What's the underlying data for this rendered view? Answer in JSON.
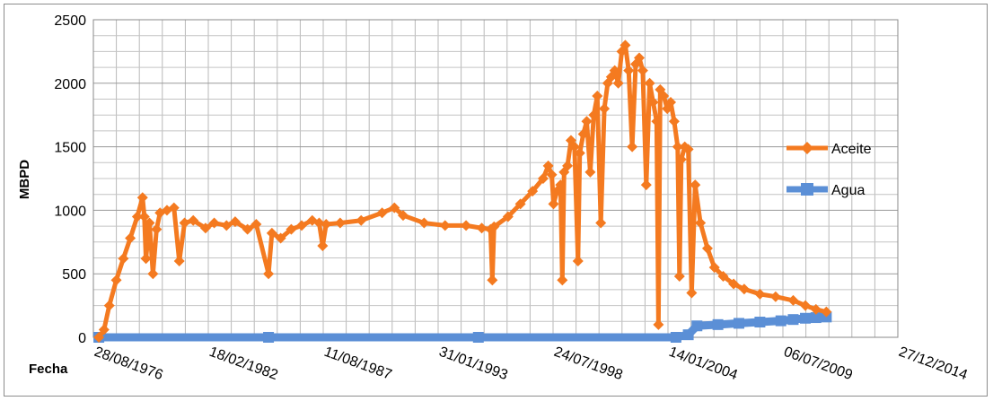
{
  "chart_data": {
    "type": "line",
    "xlabel": "Fecha",
    "ylabel": "MBPD",
    "x_tick_labels": [
      "28/08/1976",
      "18/02/1982",
      "11/08/1987",
      "31/01/1993",
      "24/07/1998",
      "14/01/2004",
      "06/07/2009",
      "27/12/2014"
    ],
    "ylim": [
      0,
      2500
    ],
    "y_ticks": [
      0,
      500,
      1000,
      1500,
      2000,
      2500
    ],
    "grid": true,
    "legend_position": "right",
    "series": [
      {
        "name": "Aceite",
        "color": "#f47a20",
        "marker": "diamond",
        "points": [
          [
            "1976-12-01",
            0
          ],
          [
            "1977-03-01",
            60
          ],
          [
            "1977-06-01",
            250
          ],
          [
            "1977-10-01",
            450
          ],
          [
            "1978-02-01",
            620
          ],
          [
            "1978-06-01",
            780
          ],
          [
            "1978-10-01",
            950
          ],
          [
            "1979-01-01",
            1100
          ],
          [
            "1979-02-01",
            950
          ],
          [
            "1979-03-01",
            620
          ],
          [
            "1979-05-01",
            900
          ],
          [
            "1979-07-01",
            500
          ],
          [
            "1979-09-01",
            850
          ],
          [
            "1979-11-01",
            980
          ],
          [
            "1980-03-01",
            1000
          ],
          [
            "1980-07-01",
            1020
          ],
          [
            "1980-10-01",
            600
          ],
          [
            "1981-01-01",
            900
          ],
          [
            "1981-06-01",
            920
          ],
          [
            "1982-01-01",
            860
          ],
          [
            "1982-06-01",
            900
          ],
          [
            "1983-01-01",
            880
          ],
          [
            "1983-06-01",
            910
          ],
          [
            "1984-01-01",
            850
          ],
          [
            "1984-06-01",
            890
          ],
          [
            "1985-01-01",
            500
          ],
          [
            "1985-03-01",
            820
          ],
          [
            "1985-08-01",
            780
          ],
          [
            "1986-02-01",
            850
          ],
          [
            "1986-08-01",
            880
          ],
          [
            "1987-02-01",
            920
          ],
          [
            "1987-06-01",
            900
          ],
          [
            "1987-08-01",
            720
          ],
          [
            "1987-10-01",
            890
          ],
          [
            "1988-06-01",
            900
          ],
          [
            "1989-06-01",
            920
          ],
          [
            "1990-06-01",
            980
          ],
          [
            "1991-01-01",
            1020
          ],
          [
            "1991-06-01",
            960
          ],
          [
            "1992-06-01",
            900
          ],
          [
            "1993-06-01",
            880
          ],
          [
            "1994-06-01",
            880
          ],
          [
            "1995-03-01",
            860
          ],
          [
            "1995-08-01",
            850
          ],
          [
            "1995-09-01",
            450
          ],
          [
            "1995-10-01",
            870
          ],
          [
            "1996-06-01",
            950
          ],
          [
            "1997-01-01",
            1050
          ],
          [
            "1997-08-01",
            1150
          ],
          [
            "1998-02-01",
            1250
          ],
          [
            "1998-05-01",
            1350
          ],
          [
            "1998-07-01",
            1280
          ],
          [
            "1998-08-01",
            1050
          ],
          [
            "1998-10-01",
            1150
          ],
          [
            "1998-12-01",
            1200
          ],
          [
            "1999-01-01",
            450
          ],
          [
            "1999-02-01",
            1300
          ],
          [
            "1999-04-01",
            1350
          ],
          [
            "1999-06-01",
            1550
          ],
          [
            "1999-08-01",
            1500
          ],
          [
            "1999-10-01",
            600
          ],
          [
            "1999-11-01",
            1450
          ],
          [
            "2000-01-01",
            1600
          ],
          [
            "2000-03-01",
            1700
          ],
          [
            "2000-05-01",
            1300
          ],
          [
            "2000-07-01",
            1750
          ],
          [
            "2000-09-01",
            1900
          ],
          [
            "2000-11-01",
            900
          ],
          [
            "2001-01-01",
            1800
          ],
          [
            "2001-03-01",
            2000
          ],
          [
            "2001-05-01",
            2050
          ],
          [
            "2001-07-01",
            2100
          ],
          [
            "2001-09-01",
            2000
          ],
          [
            "2001-11-01",
            2250
          ],
          [
            "2002-01-01",
            2300
          ],
          [
            "2002-03-01",
            2100
          ],
          [
            "2002-05-01",
            1500
          ],
          [
            "2002-07-01",
            2150
          ],
          [
            "2002-09-01",
            2200
          ],
          [
            "2002-11-01",
            2100
          ],
          [
            "2003-01-01",
            1200
          ],
          [
            "2003-03-01",
            2000
          ],
          [
            "2003-05-01",
            1850
          ],
          [
            "2003-07-01",
            1700
          ],
          [
            "2003-08-01",
            100
          ],
          [
            "2003-09-01",
            1950
          ],
          [
            "2003-11-01",
            1900
          ],
          [
            "2004-01-01",
            1800
          ],
          [
            "2004-03-01",
            1850
          ],
          [
            "2004-05-01",
            1700
          ],
          [
            "2004-07-01",
            1500
          ],
          [
            "2004-08-01",
            480
          ],
          [
            "2004-09-01",
            1400
          ],
          [
            "2004-11-01",
            1500
          ],
          [
            "2005-01-01",
            1480
          ],
          [
            "2005-03-01",
            350
          ],
          [
            "2005-05-01",
            1200
          ],
          [
            "2005-08-01",
            900
          ],
          [
            "2005-12-01",
            700
          ],
          [
            "2006-04-01",
            550
          ],
          [
            "2006-09-01",
            480
          ],
          [
            "2007-03-01",
            420
          ],
          [
            "2007-09-01",
            380
          ],
          [
            "2008-06-01",
            340
          ],
          [
            "2009-03-01",
            320
          ],
          [
            "2010-01-01",
            290
          ],
          [
            "2010-08-01",
            250
          ],
          [
            "2011-02-01",
            220
          ],
          [
            "2011-08-01",
            200
          ]
        ]
      },
      {
        "name": "Agua",
        "color": "#5b8fd6",
        "marker": "square",
        "points": [
          [
            "1976-12-01",
            0
          ],
          [
            "1985-01-01",
            0
          ],
          [
            "1995-01-01",
            0
          ],
          [
            "2004-06-01",
            0
          ],
          [
            "2005-01-01",
            20
          ],
          [
            "2005-06-01",
            90
          ],
          [
            "2006-06-01",
            100
          ],
          [
            "2007-06-01",
            110
          ],
          [
            "2008-06-01",
            120
          ],
          [
            "2009-06-01",
            130
          ],
          [
            "2010-01-01",
            140
          ],
          [
            "2010-08-01",
            150
          ],
          [
            "2011-02-01",
            155
          ],
          [
            "2011-08-01",
            160
          ]
        ]
      }
    ]
  }
}
